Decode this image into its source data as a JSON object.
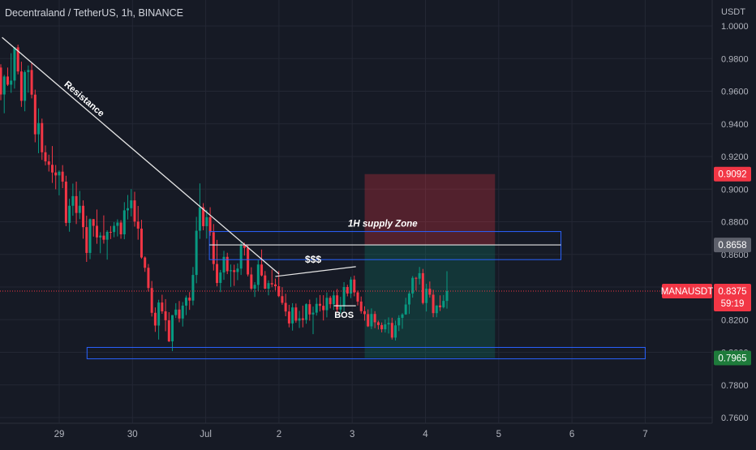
{
  "header": {
    "title": "Decentraland / TetherUS, 1h, BINANCE",
    "currency": "USDT"
  },
  "chart_data": {
    "type": "candlestick",
    "symbol": "MANAUSDT",
    "ylim": [
      0.76,
      1.0
    ],
    "y_ticks": [
      "1.0000",
      "0.9800",
      "0.9600",
      "0.9400",
      "0.9200",
      "0.9000",
      "0.8800",
      "0.8600",
      "0.8400",
      "0.8200",
      "0.8000",
      "0.7800",
      "0.7600"
    ],
    "y_tick_values": [
      1.0,
      0.98,
      0.96,
      0.94,
      0.92,
      0.9,
      0.88,
      0.86,
      0.84,
      0.82,
      0.8,
      0.78,
      0.76
    ],
    "x_ticks": [
      "29",
      "30",
      "Jul",
      "2",
      "3",
      "4",
      "5",
      "6",
      "7"
    ],
    "x_tick_days": [
      0,
      1,
      2,
      3,
      4,
      5,
      6,
      7,
      8
    ],
    "x_range_days": [
      -0.78,
      9.15
    ],
    "price_labels": {
      "stop": {
        "text": "0.9092",
        "value": 0.9092,
        "color": "#f23645"
      },
      "entry": {
        "text": "0.8658",
        "value": 0.8658,
        "color": "#5d606b"
      },
      "symbol_tag": {
        "text": "MANAUSDT",
        "value": 0.8375,
        "color": "#f23645"
      },
      "last": {
        "text": "0.8375",
        "value": 0.8375,
        "color": "#f23645"
      },
      "countdown": {
        "text": "59:19",
        "color": "#f23645"
      },
      "target": {
        "text": "0.7965",
        "value": 0.7965,
        "color": "#1e7b3b"
      }
    },
    "annotations": [
      {
        "id": "resistance",
        "label": "Resistance",
        "from": [
          -0.78,
          0.993
        ],
        "to": [
          3.0,
          0.848
        ]
      },
      {
        "id": "supply",
        "label": "1H supply Zone",
        "x0": 2.05,
        "x1": 6.85,
        "y0": 0.8568,
        "y1": 0.874,
        "mid": 0.8658
      },
      {
        "id": "demand",
        "x0": 0.38,
        "x1": 8.0,
        "y0": 0.796,
        "y1": 0.803
      },
      {
        "id": "liquidity",
        "label": "$$$",
        "from": [
          2.95,
          0.8465
        ],
        "to": [
          4.05,
          0.8525
        ]
      },
      {
        "id": "bos",
        "label": "BOS",
        "from": [
          3.75,
          0.8285
        ],
        "to": [
          4.05,
          0.8285
        ]
      },
      {
        "id": "short-position",
        "x0": 4.17,
        "x1": 5.95,
        "entry": 0.8658,
        "stop": 0.9092,
        "target": 0.7965
      }
    ],
    "colors": {
      "up": "#089981",
      "down": "#f23645",
      "bg": "#161a25",
      "grid": "#232734"
    },
    "candles": [
      [
        0.9745,
        0.9765,
        0.9545,
        0.958
      ],
      [
        0.958,
        0.97,
        0.9465,
        0.969
      ],
      [
        0.969,
        0.9745,
        0.9632,
        0.964
      ],
      [
        0.964,
        0.9833,
        0.959,
        0.9665
      ],
      [
        0.9665,
        0.987,
        0.9616,
        0.9869
      ],
      [
        0.9869,
        0.9885,
        0.9703,
        0.9721
      ],
      [
        0.9721,
        0.9781,
        0.9504,
        0.9541
      ],
      [
        0.9541,
        0.9728,
        0.9477,
        0.9717
      ],
      [
        0.9717,
        0.9758,
        0.9591,
        0.973
      ],
      [
        0.973,
        0.9776,
        0.9556,
        0.9579
      ],
      [
        0.9579,
        0.961,
        0.9287,
        0.9336
      ],
      [
        0.9336,
        0.9495,
        0.922,
        0.9405
      ],
      [
        0.9405,
        0.9432,
        0.9179,
        0.9226
      ],
      [
        0.9226,
        0.9268,
        0.9146,
        0.917
      ],
      [
        0.917,
        0.9211,
        0.9108,
        0.9149
      ],
      [
        0.9149,
        0.9264,
        0.9038,
        0.9102
      ],
      [
        0.9102,
        0.9148,
        0.8999,
        0.9084
      ],
      [
        0.9084,
        0.9115,
        0.8962,
        0.9107
      ],
      [
        0.9107,
        0.9147,
        0.9006,
        0.9046
      ],
      [
        0.9046,
        0.9082,
        0.8773,
        0.8793
      ],
      [
        0.8793,
        0.8941,
        0.8739,
        0.8898
      ],
      [
        0.8898,
        0.9034,
        0.8837,
        0.8957
      ],
      [
        0.8957,
        0.9046,
        0.8786,
        0.8854
      ],
      [
        0.8854,
        0.8989,
        0.8816,
        0.8898
      ],
      [
        0.8898,
        0.8931,
        0.8696,
        0.8767
      ],
      [
        0.8767,
        0.8837,
        0.8554,
        0.8609
      ],
      [
        0.8609,
        0.882,
        0.8571,
        0.8816
      ],
      [
        0.8816,
        0.8817,
        0.8709,
        0.8775
      ],
      [
        0.8775,
        0.8875,
        0.8665,
        0.8704
      ],
      [
        0.8704,
        0.8736,
        0.8607,
        0.8715
      ],
      [
        0.8715,
        0.8839,
        0.8666,
        0.869
      ],
      [
        0.869,
        0.8748,
        0.8568,
        0.8738
      ],
      [
        0.8738,
        0.8774,
        0.8694,
        0.8737
      ],
      [
        0.8737,
        0.8798,
        0.8705,
        0.8775
      ],
      [
        0.8775,
        0.8815,
        0.871,
        0.8795
      ],
      [
        0.8795,
        0.881,
        0.8696,
        0.8723
      ],
      [
        0.8723,
        0.892,
        0.8693,
        0.887
      ],
      [
        0.887,
        0.8964,
        0.8814,
        0.8883
      ],
      [
        0.8883,
        0.9,
        0.8833,
        0.8931
      ],
      [
        0.8931,
        0.8984,
        0.877,
        0.8801
      ],
      [
        0.8801,
        0.8897,
        0.869,
        0.8758
      ],
      [
        0.8758,
        0.8812,
        0.8573,
        0.8581
      ],
      [
        0.8581,
        0.8588,
        0.8493,
        0.8518
      ],
      [
        0.8518,
        0.8541,
        0.8372,
        0.8394
      ],
      [
        0.8394,
        0.8437,
        0.8219,
        0.8242
      ],
      [
        0.8242,
        0.8275,
        0.8125,
        0.8164
      ],
      [
        0.8164,
        0.8322,
        0.8078,
        0.8305
      ],
      [
        0.8305,
        0.8353,
        0.8236,
        0.8251
      ],
      [
        0.8251,
        0.8326,
        0.8129,
        0.8196
      ],
      [
        0.8196,
        0.8246,
        0.8063,
        0.8067
      ],
      [
        0.8067,
        0.8228,
        0.8007,
        0.8228
      ],
      [
        0.8228,
        0.8301,
        0.821,
        0.8262
      ],
      [
        0.8262,
        0.8314,
        0.8184,
        0.8207
      ],
      [
        0.8207,
        0.8308,
        0.8158,
        0.8286
      ],
      [
        0.8286,
        0.8348,
        0.8228,
        0.8335
      ],
      [
        0.8335,
        0.8369,
        0.826,
        0.8317
      ],
      [
        0.8317,
        0.8523,
        0.8288,
        0.8474
      ],
      [
        0.8474,
        0.883,
        0.8423,
        0.8745
      ],
      [
        0.8745,
        0.9035,
        0.8695,
        0.8888
      ],
      [
        0.8888,
        0.8914,
        0.8748,
        0.8773
      ],
      [
        0.8773,
        0.8873,
        0.8697,
        0.8828
      ],
      [
        0.8828,
        0.8889,
        0.8714,
        0.8736
      ],
      [
        0.8736,
        0.8786,
        0.8501,
        0.8541
      ],
      [
        0.8541,
        0.8689,
        0.8404,
        0.8425
      ],
      [
        0.8425,
        0.8505,
        0.8369,
        0.8489
      ],
      [
        0.8489,
        0.8622,
        0.8444,
        0.8585
      ],
      [
        0.8585,
        0.861,
        0.8479,
        0.8497
      ],
      [
        0.8497,
        0.8538,
        0.8401,
        0.8503
      ],
      [
        0.8503,
        0.8537,
        0.8407,
        0.8492
      ],
      [
        0.8492,
        0.8545,
        0.8442,
        0.8513
      ],
      [
        0.8513,
        0.8679,
        0.8474,
        0.8654
      ],
      [
        0.8654,
        0.8672,
        0.8593,
        0.864
      ],
      [
        0.864,
        0.8658,
        0.8465,
        0.8477
      ],
      [
        0.8477,
        0.8521,
        0.8381,
        0.839
      ],
      [
        0.839,
        0.843,
        0.8339,
        0.8413
      ],
      [
        0.8413,
        0.8564,
        0.8375,
        0.8538
      ],
      [
        0.8538,
        0.863,
        0.8465,
        0.8471
      ],
      [
        0.8471,
        0.8498,
        0.8387,
        0.839
      ],
      [
        0.839,
        0.8441,
        0.8349,
        0.8424
      ],
      [
        0.8424,
        0.8507,
        0.8399,
        0.8416
      ],
      [
        0.8416,
        0.8452,
        0.838,
        0.8405
      ],
      [
        0.8405,
        0.8498,
        0.8338,
        0.8344
      ],
      [
        0.8344,
        0.8399,
        0.8291,
        0.8303
      ],
      [
        0.8303,
        0.8359,
        0.8221,
        0.825
      ],
      [
        0.825,
        0.8291,
        0.8153,
        0.8177
      ],
      [
        0.8177,
        0.8301,
        0.8133,
        0.8275
      ],
      [
        0.8275,
        0.8299,
        0.8181,
        0.8194
      ],
      [
        0.8194,
        0.8254,
        0.8149,
        0.8208
      ],
      [
        0.8208,
        0.8286,
        0.8153,
        0.8198
      ],
      [
        0.8198,
        0.83,
        0.8175,
        0.8295
      ],
      [
        0.8295,
        0.8323,
        0.8194,
        0.8232
      ],
      [
        0.8232,
        0.828,
        0.8111,
        0.8243
      ],
      [
        0.8243,
        0.8334,
        0.8225,
        0.8297
      ],
      [
        0.8297,
        0.8351,
        0.825,
        0.8285
      ],
      [
        0.8285,
        0.835,
        0.8195,
        0.8258
      ],
      [
        0.8258,
        0.8367,
        0.8214,
        0.8334
      ],
      [
        0.8334,
        0.8346,
        0.8269,
        0.8295
      ],
      [
        0.8295,
        0.8374,
        0.826,
        0.8349
      ],
      [
        0.8349,
        0.8388,
        0.8243,
        0.8262
      ],
      [
        0.8262,
        0.834,
        0.8238,
        0.828
      ],
      [
        0.828,
        0.843,
        0.8252,
        0.84
      ],
      [
        0.84,
        0.8414,
        0.8343,
        0.836
      ],
      [
        0.836,
        0.8462,
        0.8332,
        0.8446
      ],
      [
        0.8446,
        0.847,
        0.8343,
        0.8367
      ],
      [
        0.8367,
        0.8378,
        0.8287,
        0.8311
      ],
      [
        0.8311,
        0.8342,
        0.8237,
        0.8252
      ],
      [
        0.8252,
        0.8282,
        0.8194,
        0.8234
      ],
      [
        0.8234,
        0.8263,
        0.8155,
        0.8159
      ],
      [
        0.8159,
        0.8269,
        0.8142,
        0.8235
      ],
      [
        0.8235,
        0.8252,
        0.8148,
        0.8184
      ],
      [
        0.8184,
        0.8194,
        0.814,
        0.8167
      ],
      [
        0.8167,
        0.8183,
        0.8122,
        0.8141
      ],
      [
        0.8141,
        0.8201,
        0.8121,
        0.8171
      ],
      [
        0.8171,
        0.8214,
        0.8115,
        0.818
      ],
      [
        0.818,
        0.8212,
        0.8078,
        0.809
      ],
      [
        0.809,
        0.8194,
        0.8072,
        0.8165
      ],
      [
        0.8165,
        0.8227,
        0.813,
        0.8211
      ],
      [
        0.8211,
        0.824,
        0.8144,
        0.8232
      ],
      [
        0.8232,
        0.8334,
        0.823,
        0.8293
      ],
      [
        0.8293,
        0.8377,
        0.8235,
        0.836
      ],
      [
        0.836,
        0.8467,
        0.8335,
        0.8456
      ],
      [
        0.8456,
        0.8462,
        0.8379,
        0.8451
      ],
      [
        0.8451,
        0.8523,
        0.8415,
        0.8485
      ],
      [
        0.8485,
        0.8511,
        0.8293,
        0.8302
      ],
      [
        0.8302,
        0.842,
        0.825,
        0.839
      ],
      [
        0.839,
        0.8434,
        0.8335,
        0.8353
      ],
      [
        0.8353,
        0.8383,
        0.8215,
        0.824
      ],
      [
        0.824,
        0.8288,
        0.8215,
        0.8287
      ],
      [
        0.8287,
        0.8349,
        0.8253,
        0.8276
      ],
      [
        0.8276,
        0.8351,
        0.8269,
        0.8315
      ],
      [
        0.8315,
        0.8497,
        0.8268,
        0.8375
      ]
    ]
  }
}
